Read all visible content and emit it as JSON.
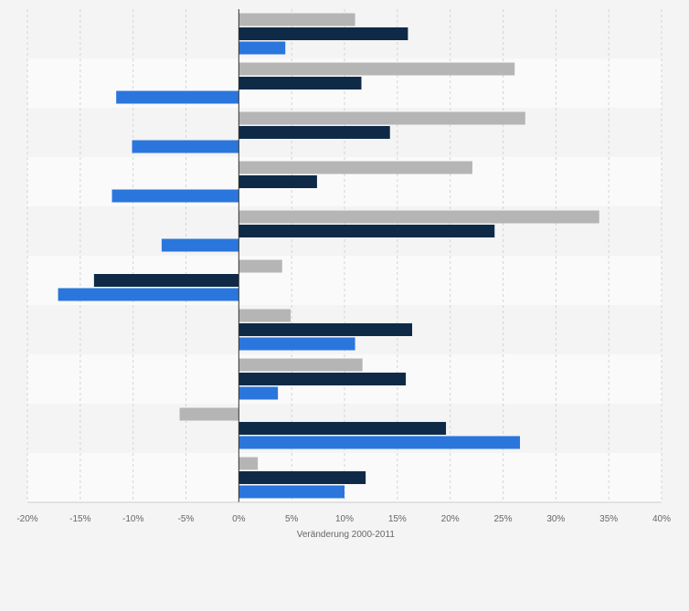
{
  "chart_data": {
    "type": "bar",
    "orientation": "horizontal",
    "categories": [
      "",
      "",
      "",
      "",
      "",
      "",
      "",
      "",
      "",
      ""
    ],
    "xlabel": "Veränderung 2000-2011",
    "xlim": [
      -20,
      40
    ],
    "xticks": [
      -20,
      -15,
      -10,
      -5,
      0,
      5,
      10,
      15,
      20,
      25,
      30,
      35,
      40
    ],
    "xtick_labels": [
      "-20%",
      "-15%",
      "-10%",
      "-5%",
      "0%",
      "5%",
      "10%",
      "15%",
      "20%",
      "25%",
      "30%",
      "35%",
      "40%"
    ],
    "grid": true,
    "legend": "none",
    "series": [
      {
        "color": "#b5b5b5",
        "values": [
          11.0,
          26.1,
          27.1,
          22.1,
          34.1,
          4.1,
          4.9,
          11.7,
          -5.6,
          1.8
        ]
      },
      {
        "color": "#0e2a47",
        "values": [
          16.0,
          11.6,
          14.3,
          7.4,
          24.2,
          -13.7,
          16.4,
          15.8,
          19.6,
          12.0
        ]
      },
      {
        "color": "#2a76dd",
        "values": [
          4.4,
          -11.6,
          -10.1,
          -12.0,
          -7.3,
          -17.1,
          11.0,
          3.7,
          26.6,
          10.0
        ]
      }
    ]
  }
}
